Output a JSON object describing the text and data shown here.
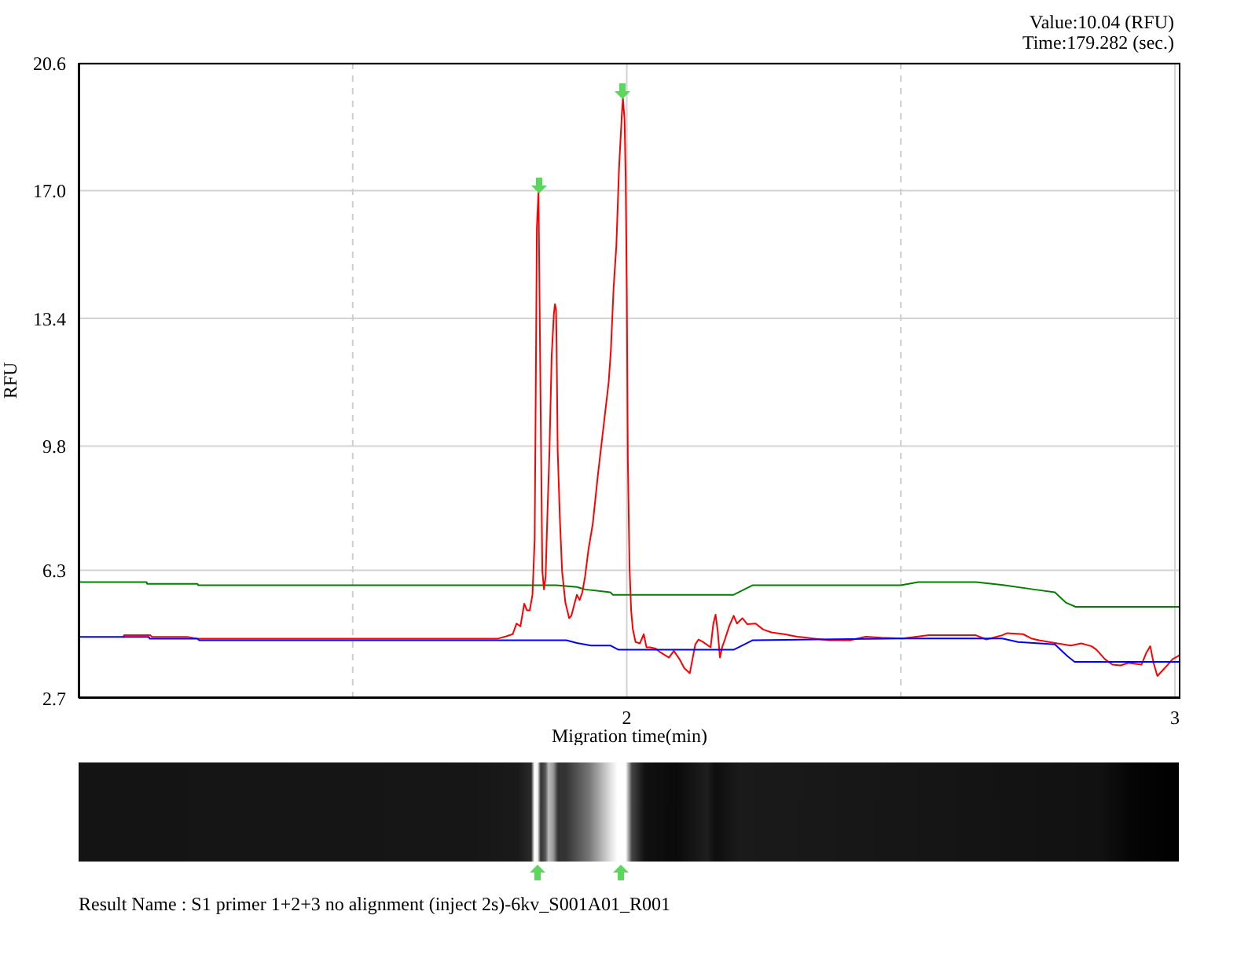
{
  "chart_data": {
    "type": "line",
    "xlabel": "Migration time(min)",
    "ylabel": "RFU",
    "annotations": [
      "Value:10.04 (RFU)",
      "Time:179.282 (sec.)",
      "Result Name : S1 primer 1+2+3 no alignment (inject 2s)-6kv_S001A01_R001"
    ],
    "xlim": [
      1,
      3.01
    ],
    "xticks": [
      {
        "value": 1.5,
        "label": null
      },
      2,
      {
        "value": 2.5,
        "label": null
      },
      3
    ],
    "ylim": [
      2.7,
      20.6
    ],
    "yticks": [
      2.7,
      6.3,
      9.8,
      13.4,
      {
        "value": 17,
        "label": "17.0"
      },
      20.6
    ],
    "grid": true,
    "series": [
      {
        "color": "#008000",
        "x": [
          1.0,
          1.124,
          1.125,
          1.217,
          1.218,
          1.871,
          1.909,
          1.924,
          1.97,
          1.975,
          2.195,
          2.23,
          2.5,
          2.532,
          2.637,
          2.689,
          2.743,
          2.781,
          2.801,
          2.819,
          3.01
        ],
        "values": [
          5.97,
          5.97,
          5.92,
          5.92,
          5.88,
          5.88,
          5.83,
          5.76,
          5.68,
          5.61,
          5.61,
          5.88,
          5.88,
          5.97,
          5.97,
          5.88,
          5.76,
          5.68,
          5.39,
          5.27,
          5.27
        ]
      },
      {
        "color": "#ff0000",
        "x": [
          1.082,
          1.083,
          1.131,
          1.134,
          1.2,
          1.218,
          1.286,
          1.482,
          1.631,
          1.764,
          1.78,
          1.792,
          1.799,
          1.806,
          1.813,
          1.818,
          1.823,
          1.828,
          1.832,
          1.834,
          1.836,
          1.839,
          1.843,
          1.846,
          1.849,
          1.852,
          1.855,
          1.859,
          1.863,
          1.867,
          1.869,
          1.871,
          1.872,
          1.874,
          1.878,
          1.882,
          1.888,
          1.895,
          1.899,
          1.904,
          1.909,
          1.914,
          1.919,
          1.924,
          1.93,
          1.938,
          1.947,
          1.957,
          1.967,
          1.971,
          1.976,
          1.981,
          1.986,
          1.991,
          1.993,
          1.996,
          1.998,
          2.0,
          2.002,
          2.005,
          2.008,
          2.011,
          2.016,
          2.024,
          2.031,
          2.036,
          2.043,
          2.053,
          2.062,
          2.077,
          2.086,
          2.096,
          2.105,
          2.115,
          2.125,
          2.131,
          2.139,
          2.153,
          2.158,
          2.162,
          2.166,
          2.17,
          2.174,
          2.179,
          2.187,
          2.195,
          2.201,
          2.211,
          2.22,
          2.235,
          2.249,
          2.264,
          2.287,
          2.311,
          2.34,
          2.369,
          2.407,
          2.436,
          2.464,
          2.503,
          2.551,
          2.599,
          2.637,
          2.656,
          2.685,
          2.694,
          2.723,
          2.738,
          2.752,
          2.781,
          2.81,
          2.829,
          2.848,
          2.857,
          2.872,
          2.886,
          2.901,
          2.915,
          2.939,
          2.948,
          2.955,
          2.961,
          2.968,
          2.977,
          2.987,
          2.996,
          3.006,
          3.01
        ],
        "values": [
          4.42,
          4.47,
          4.47,
          4.42,
          4.42,
          4.37,
          4.37,
          4.37,
          4.37,
          4.37,
          4.44,
          4.5,
          4.8,
          4.72,
          5.36,
          5.17,
          5.17,
          5.61,
          7.17,
          11.3,
          15.96,
          17.0,
          10.71,
          6.28,
          5.76,
          6.13,
          7.75,
          9.67,
          12.33,
          13.52,
          13.8,
          13.66,
          12.63,
          9.67,
          7.75,
          6.28,
          5.39,
          4.95,
          5.02,
          5.32,
          5.61,
          5.46,
          5.68,
          6.13,
          6.87,
          7.61,
          8.94,
          10.27,
          11.6,
          12.49,
          14.26,
          15.44,
          17.66,
          19.14,
          19.6,
          19.0,
          17.37,
          14.26,
          9.38,
          6.42,
          5.17,
          4.65,
          4.28,
          4.24,
          4.5,
          4.13,
          4.13,
          4.09,
          3.98,
          3.84,
          4.03,
          3.8,
          3.54,
          3.4,
          4.21,
          4.35,
          4.28,
          4.13,
          4.8,
          5.05,
          4.58,
          3.84,
          4.13,
          4.35,
          4.73,
          5.02,
          4.8,
          4.95,
          4.78,
          4.8,
          4.63,
          4.55,
          4.5,
          4.43,
          4.38,
          4.33,
          4.33,
          4.43,
          4.4,
          4.38,
          4.47,
          4.47,
          4.47,
          4.35,
          4.47,
          4.53,
          4.5,
          4.38,
          4.33,
          4.25,
          4.18,
          4.24,
          4.16,
          4.06,
          3.8,
          3.64,
          3.62,
          3.69,
          3.64,
          3.98,
          4.16,
          3.69,
          3.32,
          3.47,
          3.64,
          3.8,
          3.88,
          3.94
        ]
      },
      {
        "color": "#0000ff",
        "x": [
          1.0,
          1.128,
          1.13,
          1.217,
          1.22,
          1.89,
          1.909,
          1.935,
          1.97,
          1.985,
          2.195,
          2.23,
          2.5,
          2.685,
          2.714,
          2.781,
          2.804,
          2.817,
          3.01
        ],
        "values": [
          4.42,
          4.42,
          4.37,
          4.37,
          4.33,
          4.33,
          4.25,
          4.18,
          4.18,
          4.06,
          4.06,
          4.33,
          4.38,
          4.38,
          4.28,
          4.21,
          3.88,
          3.72,
          3.72
        ]
      }
    ]
  }
}
